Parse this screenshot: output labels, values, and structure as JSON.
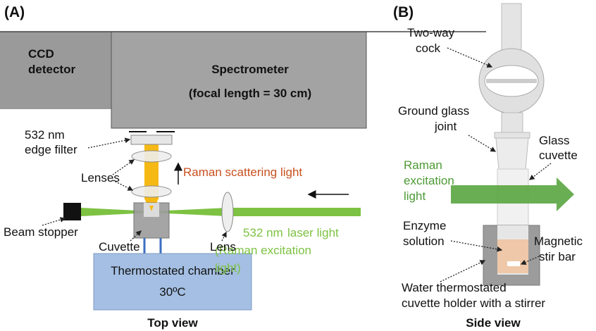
{
  "panel_a": {
    "tag": "(A)",
    "ccd": [
      "CCD",
      "detector"
    ],
    "spectrometer": [
      "Spectrometer",
      "(focal length = 30 cm)"
    ],
    "filter_label": [
      "532 nm",
      "edge filter"
    ],
    "lenses": "Lenses",
    "raman_scattering": "Raman scattering light",
    "beam_stopper": "Beam stopper",
    "cuvette": "Cuvette",
    "lens": "Lens",
    "laser": [
      "532 nm",
      "laser light",
      "(Raman excitation",
      "light)"
    ],
    "chamber": [
      "Thermostated chamber",
      "30ºC"
    ],
    "caption": "Top view"
  },
  "panel_b": {
    "tag": "(B)",
    "cock": [
      "Two-way",
      "cock"
    ],
    "joint": [
      "Ground glass",
      "joint"
    ],
    "glass_cuvette": [
      "Glass",
      "cuvette"
    ],
    "excitation": [
      "Raman",
      "excitation",
      "light"
    ],
    "enzyme": [
      "Enzyme",
      "solution"
    ],
    "stir_bar": [
      "Magnetic",
      "stir bar"
    ],
    "holder": [
      "Water thermostated",
      "cuvette holder with a stirrer"
    ],
    "caption": "Side view"
  }
}
